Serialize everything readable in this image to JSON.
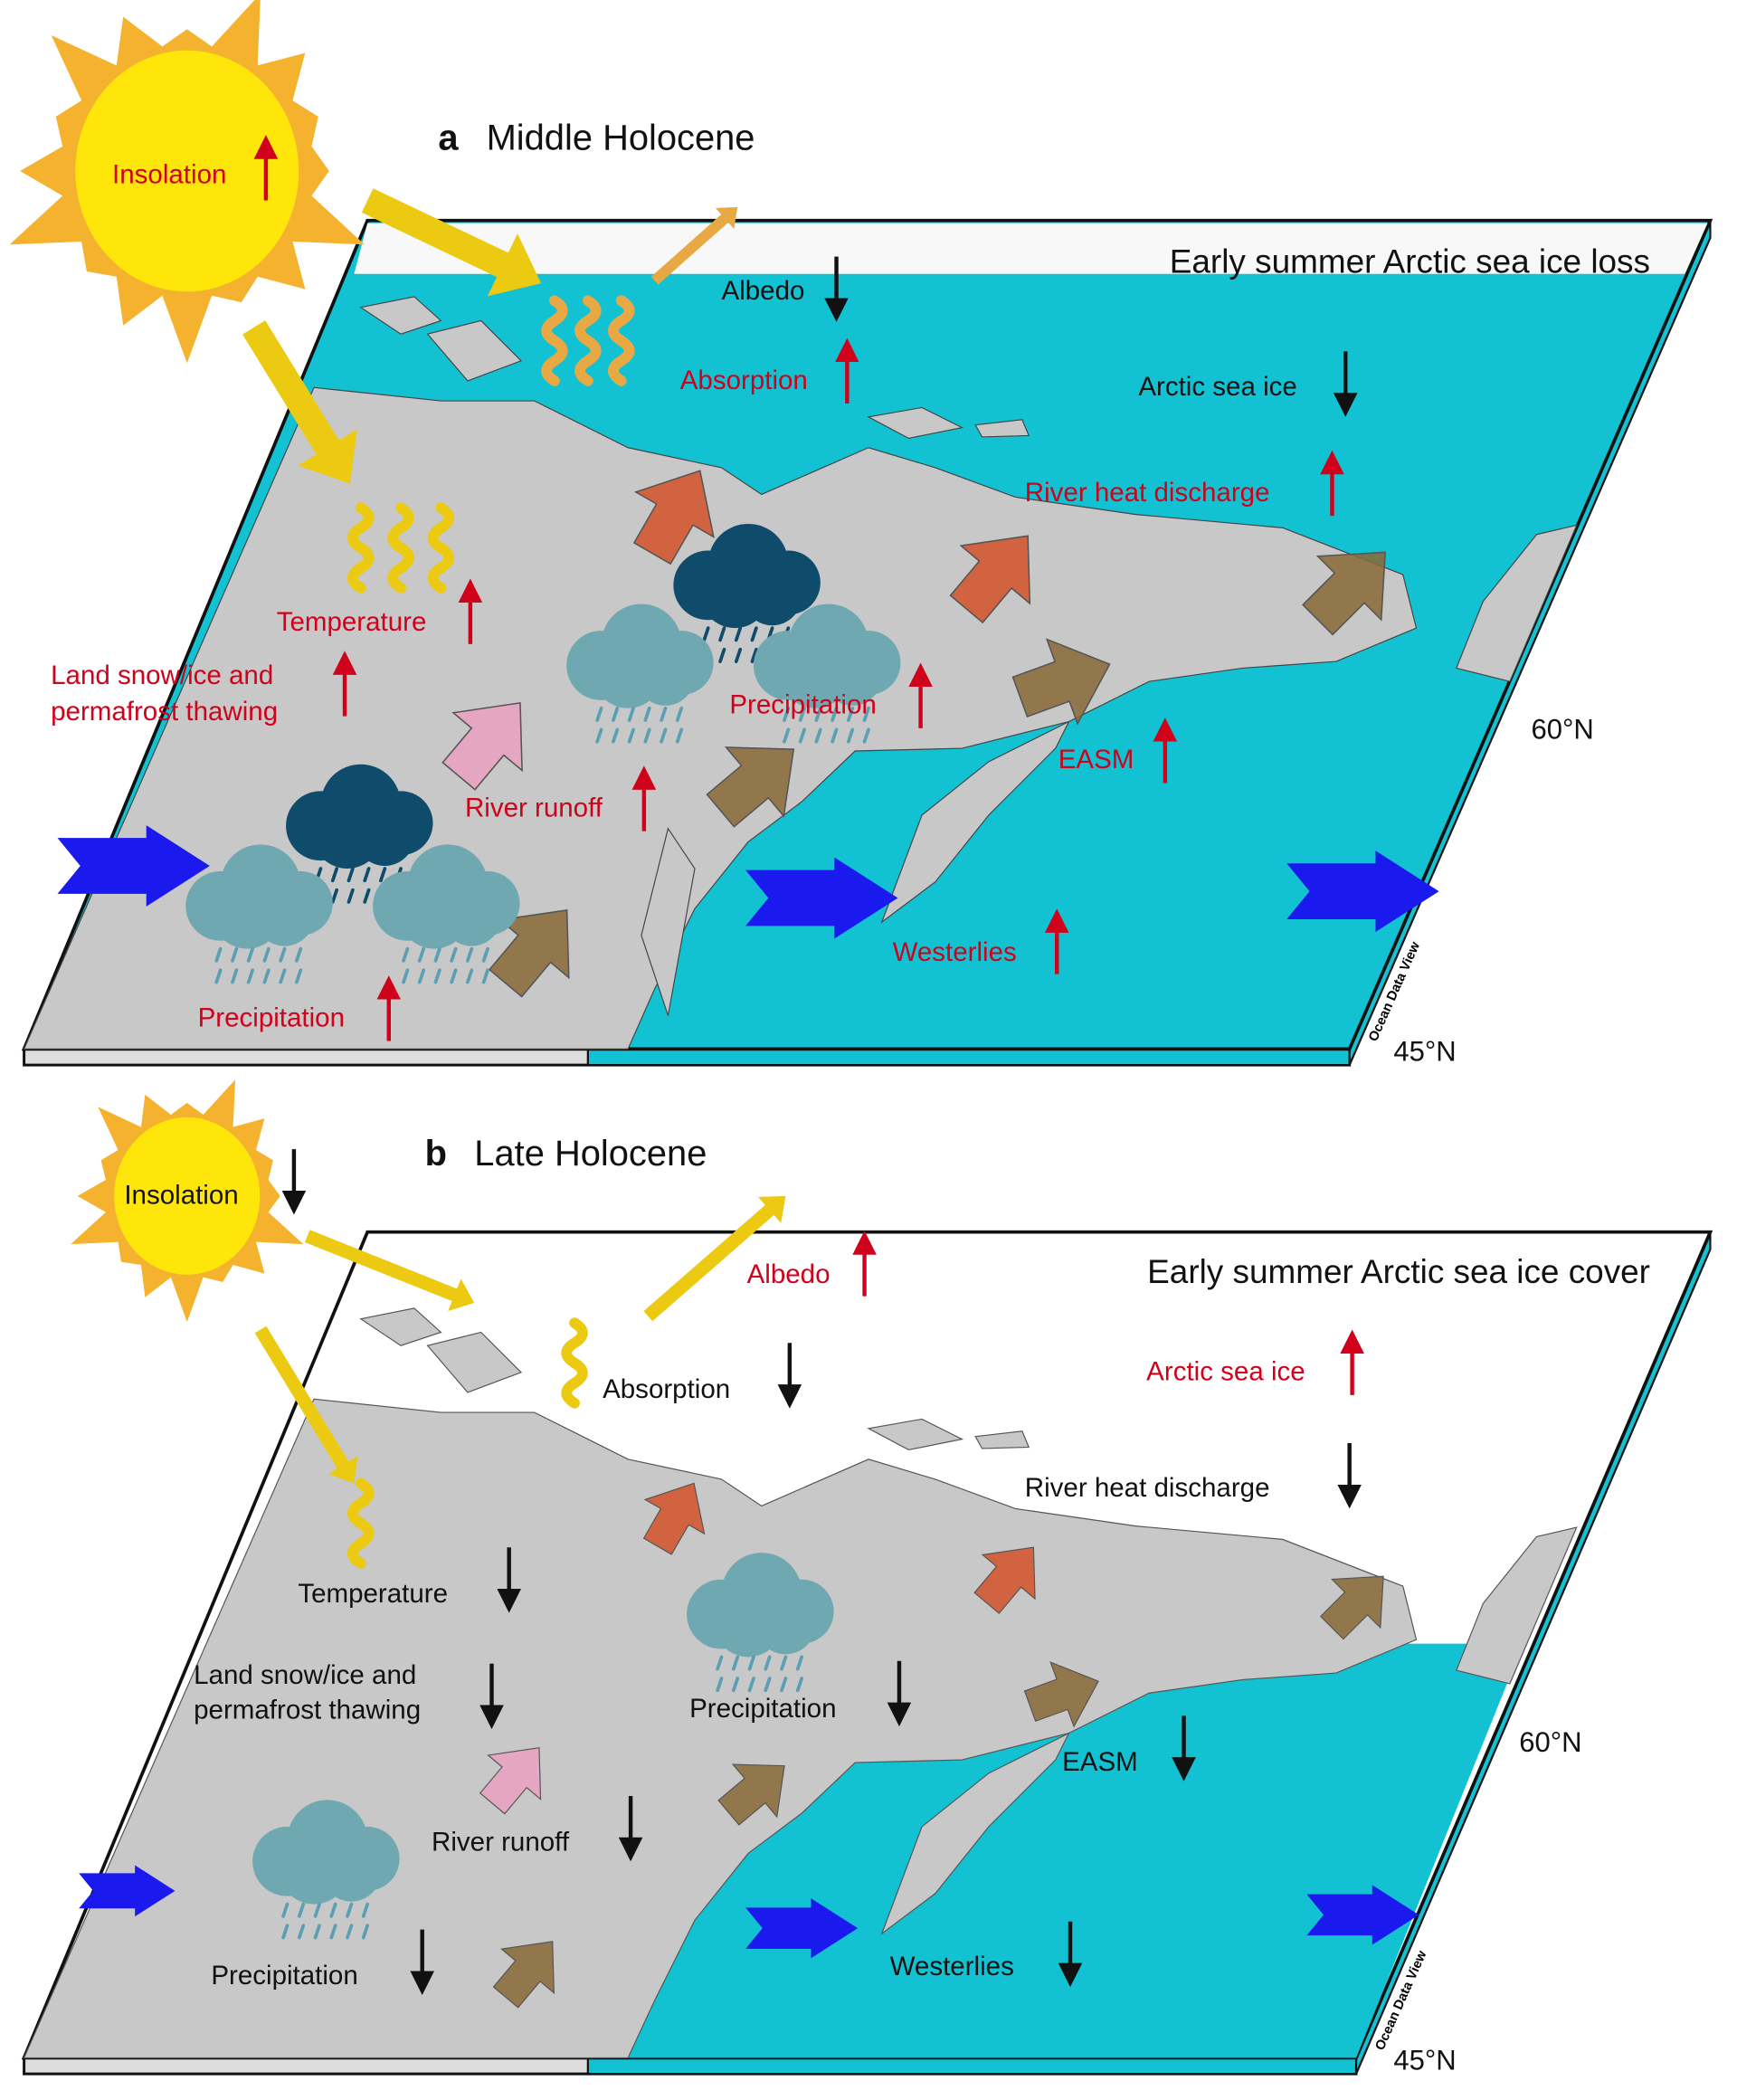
{
  "colors": {
    "ocean": "#12c2d2",
    "land": "#c8c8c8",
    "increase": "#d0021b",
    "decrease": "#111111",
    "westerlies": "#1a1aee",
    "sun_outer": "#f5b22e",
    "sun_inner": "#ffe60a"
  },
  "panel_a": {
    "letter": "a",
    "title": "Middle Holocene",
    "header": "Early summer Arctic sea ice loss",
    "labels": {
      "insolation": "Insolation",
      "albedo": "Albedo",
      "absorption": "Absorption",
      "arctic_sea_ice": "Arctic sea ice",
      "river_heat_discharge": "River heat discharge",
      "temperature": "Temperature",
      "land_snow_1": "Land snow/ice and",
      "land_snow_2": "permafrost thawing",
      "precipitation_east": "Precipitation",
      "easm": "EASM",
      "river_runoff": "River runoff",
      "westerlies": "Westerlies",
      "precipitation_west": "Precipitation"
    },
    "trends": {
      "insolation": "up",
      "albedo": "down",
      "absorption": "up",
      "arctic_sea_ice": "down",
      "river_heat_discharge": "up",
      "temperature": "up",
      "land_snow": "up",
      "precipitation_east": "up",
      "easm": "up",
      "river_runoff": "up",
      "westerlies": "up",
      "precipitation_west": "up"
    },
    "lat_60": "60°N",
    "lat_45": "45°N",
    "watermark": "Ocean Data View"
  },
  "panel_b": {
    "letter": "b",
    "title": "Late Holocene",
    "header": "Early summer Arctic sea ice cover",
    "labels": {
      "insolation": "Insolation",
      "albedo": "Albedo",
      "absorption": "Absorption",
      "arctic_sea_ice": "Arctic sea ice",
      "river_heat_discharge": "River heat discharge",
      "temperature": "Temperature",
      "land_snow_1": "Land snow/ice and",
      "land_snow_2": "permafrost thawing",
      "precipitation_east": "Precipitation",
      "easm": "EASM",
      "river_runoff": "River runoff",
      "westerlies": "Westerlies",
      "precipitation_west": "Precipitation"
    },
    "trends": {
      "insolation": "down",
      "albedo": "up",
      "absorption": "down",
      "arctic_sea_ice": "up",
      "river_heat_discharge": "down",
      "temperature": "down",
      "land_snow": "down",
      "precipitation_east": "down",
      "easm": "down",
      "river_runoff": "down",
      "westerlies": "down",
      "precipitation_west": "down"
    },
    "lat_60": "60°N",
    "lat_45": "45°N",
    "watermark": "Ocean Data View"
  }
}
